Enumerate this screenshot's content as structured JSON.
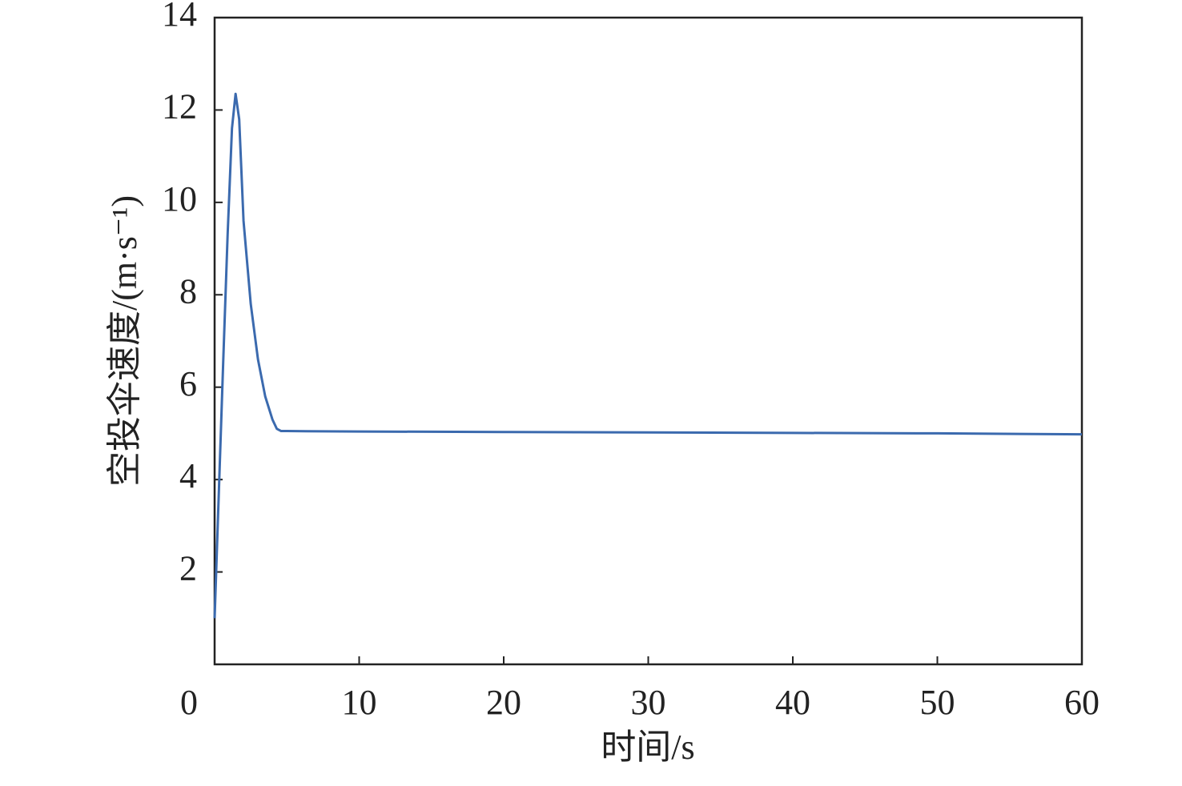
{
  "chart_data": {
    "type": "line",
    "xlabel": "时间/s",
    "ylabel": "空投伞速度/(m·s⁻¹)",
    "x": [
      0,
      0.3,
      0.6,
      0.9,
      1.2,
      1.45,
      1.7,
      2.0,
      2.5,
      3.0,
      3.5,
      4.0,
      4.3,
      4.6,
      5,
      10,
      20,
      30,
      40,
      50,
      60
    ],
    "series": [
      {
        "color": "#3b6aae",
        "values": [
          1.0,
          3.8,
          6.6,
          9.3,
          11.6,
          12.35,
          11.8,
          9.6,
          7.8,
          6.6,
          5.8,
          5.3,
          5.1,
          5.05,
          5.05,
          5.04,
          5.03,
          5.02,
          5.01,
          5.0,
          4.98
        ]
      }
    ],
    "xlim": [
      0,
      60
    ],
    "xticks": [
      0,
      10,
      20,
      30,
      40,
      50,
      60
    ],
    "ylim": [
      0,
      14
    ],
    "yticks": [
      2,
      4,
      6,
      8,
      10,
      12,
      14
    ]
  }
}
